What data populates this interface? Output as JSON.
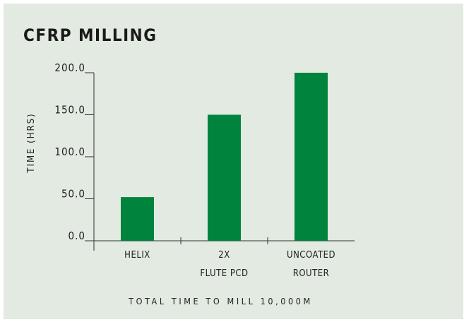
{
  "chart_data": {
    "type": "bar",
    "title": "CFRP MILLING",
    "categories": [
      [
        "HELIX"
      ],
      [
        "2X",
        "FLUTE PCD"
      ],
      [
        "UNCOATED",
        "ROUTER"
      ]
    ],
    "values": [
      52,
      150,
      200
    ],
    "ylabel": "TIME (HRS)",
    "xlabel": "TOTAL TIME TO MILL 10,000M",
    "yticks": [
      "0.0",
      "50.0",
      "100.0",
      "150.0",
      "200.0"
    ],
    "ylim": [
      0,
      200
    ],
    "grid": false,
    "bar_color": "#00843d"
  }
}
